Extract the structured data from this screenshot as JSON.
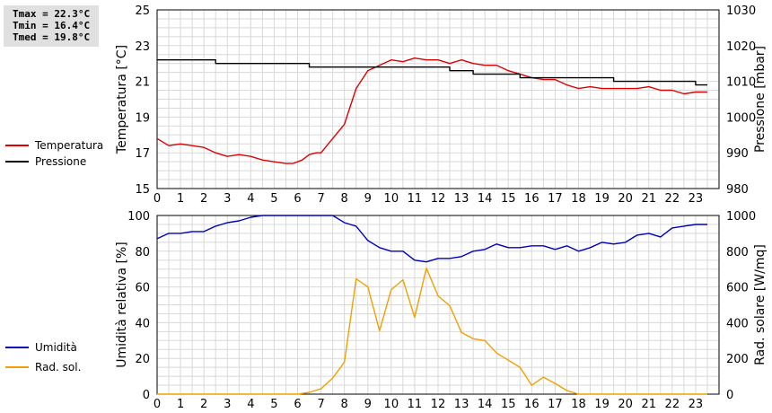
{
  "stats": {
    "tmax": "Tmax = 22.3°C",
    "tmin": "Tmin = 16.4°C",
    "tmed": "Tmed = 19.8°C"
  },
  "chart_data": [
    {
      "type": "line",
      "title": "",
      "xlabel": "",
      "x_ticks": [
        0,
        1,
        2,
        3,
        4,
        5,
        6,
        7,
        8,
        9,
        10,
        11,
        12,
        13,
        14,
        15,
        16,
        17,
        18,
        19,
        20,
        21,
        22,
        23
      ],
      "xlim": [
        0,
        24
      ],
      "ylabel_left": "Temperatura [°C]",
      "ylabel_right": "Pressione [mbar]",
      "ylim_left": [
        15,
        25
      ],
      "ylim_right": [
        980,
        1030
      ],
      "y_ticks_left": [
        15,
        17,
        19,
        21,
        23,
        25
      ],
      "y_ticks_right": [
        980,
        990,
        1000,
        1010,
        1020,
        1030
      ],
      "grid": true,
      "legend_position": "left",
      "series": [
        {
          "name": "Temperatura",
          "axis": "left",
          "color": "#e00000",
          "x": [
            0,
            0.5,
            1,
            1.5,
            2,
            2.5,
            3,
            3.5,
            4,
            4.5,
            5,
            5.5,
            5.8,
            6,
            6.2,
            6.5,
            6.8,
            7,
            7.5,
            8,
            8.5,
            9,
            9.5,
            10,
            10.5,
            11,
            11.5,
            12,
            12.5,
            13,
            13.5,
            14,
            14.5,
            15,
            15.5,
            16,
            16.5,
            17,
            17.5,
            18,
            18.5,
            19,
            19.5,
            20,
            20.5,
            21,
            21.5,
            22,
            22.5,
            23,
            23.5
          ],
          "values": [
            17.8,
            17.4,
            17.5,
            17.4,
            17.3,
            17.0,
            16.8,
            16.9,
            16.8,
            16.6,
            16.5,
            16.4,
            16.4,
            16.5,
            16.6,
            16.9,
            17.0,
            17.0,
            17.8,
            18.6,
            20.6,
            21.6,
            21.9,
            22.2,
            22.1,
            22.3,
            22.2,
            22.2,
            22.0,
            22.2,
            22.0,
            21.9,
            21.9,
            21.6,
            21.4,
            21.2,
            21.1,
            21.1,
            20.8,
            20.6,
            20.7,
            20.6,
            20.6,
            20.6,
            20.6,
            20.7,
            20.5,
            20.5,
            20.3,
            20.4,
            20.4
          ]
        },
        {
          "name": "Pressione",
          "axis": "right",
          "color": "#000000",
          "x": [
            0,
            2,
            2.5,
            4,
            6,
            6.5,
            8,
            12,
            12.5,
            13,
            13.5,
            14,
            15,
            15.5,
            18,
            19,
            19.5,
            22,
            22.5,
            23,
            23.5
          ],
          "values": [
            1016,
            1016,
            1015,
            1015,
            1015,
            1014,
            1014,
            1014,
            1013,
            1013,
            1012,
            1012,
            1012,
            1011,
            1011,
            1011,
            1010,
            1010,
            1010,
            1009,
            1009
          ]
        }
      ]
    },
    {
      "type": "line",
      "title": "",
      "xlabel": "",
      "x_ticks": [
        0,
        1,
        2,
        3,
        4,
        5,
        6,
        7,
        8,
        9,
        10,
        11,
        12,
        13,
        14,
        15,
        16,
        17,
        18,
        19,
        20,
        21,
        22,
        23
      ],
      "xlim": [
        0,
        24
      ],
      "ylabel_left": "Umidità relativa [%]",
      "ylabel_right": "Rad. solare [W/mq]",
      "ylim_left": [
        0,
        100
      ],
      "ylim_right": [
        0,
        1000
      ],
      "y_ticks_left": [
        0,
        20,
        40,
        60,
        80,
        100
      ],
      "y_ticks_right": [
        0,
        200,
        400,
        600,
        800,
        1000
      ],
      "grid": true,
      "legend_position": "left",
      "series": [
        {
          "name": "Umidità",
          "axis": "left",
          "color": "#0000c0",
          "x": [
            0,
            0.5,
            1,
            1.5,
            2,
            2.5,
            3,
            3.5,
            4,
            4.5,
            5,
            5.5,
            6,
            6.5,
            7,
            7.5,
            8,
            8.5,
            9,
            9.5,
            10,
            10.5,
            11,
            11.5,
            12,
            12.5,
            13,
            13.5,
            14,
            14.5,
            15,
            15.5,
            16,
            16.5,
            17,
            17.5,
            18,
            18.5,
            19,
            19.5,
            20,
            20.5,
            21,
            21.5,
            22,
            22.5,
            23,
            23.5
          ],
          "values": [
            87,
            90,
            90,
            91,
            91,
            94,
            96,
            97,
            99,
            100,
            100,
            100,
            100,
            100,
            100,
            100,
            96,
            94,
            86,
            82,
            80,
            80,
            75,
            74,
            76,
            76,
            77,
            80,
            81,
            84,
            82,
            82,
            83,
            83,
            81,
            83,
            80,
            82,
            85,
            84,
            85,
            89,
            90,
            88,
            93,
            94,
            95,
            95
          ]
        },
        {
          "name": "Rad. sol.",
          "axis": "right",
          "color": "#f0a000",
          "x": [
            0,
            0.5,
            1,
            1.5,
            2,
            2.5,
            3,
            3.5,
            4,
            4.5,
            5,
            5.5,
            6,
            6.5,
            7,
            7.5,
            8,
            8.5,
            9,
            9.5,
            10,
            10.5,
            11,
            11.5,
            12,
            12.5,
            13,
            13.5,
            14,
            14.5,
            15,
            15.5,
            16,
            16.5,
            17,
            17.5,
            18,
            18.5,
            19,
            19.5,
            20,
            20.5,
            21,
            21.5,
            22,
            22.5,
            23,
            23.5
          ],
          "values": [
            0,
            0,
            0,
            0,
            0,
            0,
            0,
            0,
            0,
            0,
            0,
            0,
            0,
            10,
            30,
            90,
            180,
            645,
            600,
            355,
            585,
            640,
            430,
            705,
            550,
            495,
            345,
            310,
            300,
            230,
            190,
            150,
            50,
            95,
            60,
            20,
            0,
            0,
            0,
            0,
            0,
            0,
            0,
            0,
            0,
            0,
            0,
            0
          ]
        }
      ]
    }
  ]
}
